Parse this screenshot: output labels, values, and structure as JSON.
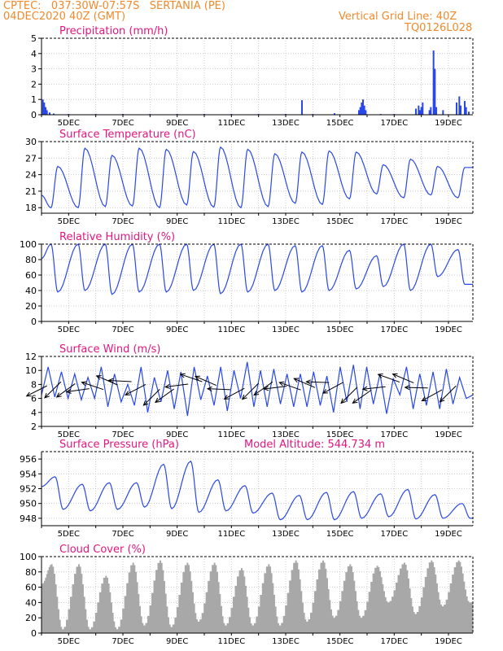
{
  "header": {
    "line1": "CPTEC:   037:30W-07:57S   SERTANIA (PE)",
    "line2": "04DEC2020 40Z (GMT)",
    "right1": "Vertical Grid Line: 40Z",
    "right2": "TQ0126L028"
  },
  "colors": {
    "header": "#f08a2c",
    "title": "#e0177f",
    "series": "#2a48e8",
    "cloud": "#a8a8a8",
    "wind_arrow": "#000000"
  },
  "x_axis_labels": [
    "5DEC",
    "7DEC",
    "9DEC",
    "11DEC",
    "13DEC",
    "15DEC",
    "17DEC",
    "19DEC"
  ],
  "chart_data": [
    {
      "id": "precip",
      "type": "bar",
      "title": "Precipitation (mm/h)",
      "ylim": [
        0,
        5
      ],
      "yticks": [
        0,
        1,
        2,
        3,
        4,
        5
      ],
      "x_unit": "days since 04DEC2020 00Z",
      "grid": true,
      "points": [
        [
          0.05,
          1.0
        ],
        [
          0.1,
          0.8
        ],
        [
          0.15,
          0.5
        ],
        [
          0.2,
          0.3
        ],
        [
          0.3,
          0.15
        ],
        [
          0.45,
          0.08
        ],
        [
          1.0,
          0.05
        ],
        [
          2.0,
          0.05
        ],
        [
          3.0,
          0.05
        ],
        [
          4.0,
          0.05
        ],
        [
          5.0,
          0.05
        ],
        [
          6.0,
          0.05
        ],
        [
          7.0,
          0.05
        ],
        [
          8.0,
          0.05
        ],
        [
          9.0,
          0.05
        ],
        [
          9.6,
          0.95
        ],
        [
          10.0,
          0.05
        ],
        [
          10.8,
          0.1
        ],
        [
          11.7,
          0.3
        ],
        [
          11.75,
          0.5
        ],
        [
          11.8,
          0.8
        ],
        [
          11.85,
          1.0
        ],
        [
          11.9,
          0.6
        ],
        [
          11.95,
          0.3
        ],
        [
          12.5,
          0.05
        ],
        [
          13.0,
          0.05
        ],
        [
          13.8,
          0.4
        ],
        [
          13.9,
          0.6
        ],
        [
          13.95,
          0.3
        ],
        [
          14.0,
          0.5
        ],
        [
          14.05,
          0.8
        ],
        [
          14.3,
          0.3
        ],
        [
          14.35,
          0.5
        ],
        [
          14.45,
          4.2
        ],
        [
          14.5,
          3.0
        ],
        [
          14.55,
          0.5
        ],
        [
          14.8,
          0.3
        ],
        [
          15.3,
          0.8
        ],
        [
          15.4,
          1.2
        ],
        [
          15.45,
          0.6
        ],
        [
          15.6,
          0.9
        ],
        [
          15.65,
          0.5
        ],
        [
          15.75,
          0.2
        ]
      ]
    },
    {
      "id": "temp",
      "type": "line",
      "title": "Surface Temperature (nC)",
      "ylim": [
        17,
        30
      ],
      "yticks": [
        18,
        21,
        24,
        27,
        30
      ],
      "x_unit": "days since 04DEC2020 00Z",
      "grid": true,
      "diurnal": {
        "start_day": 0,
        "end_day": 15.9,
        "peak_hour": 0.6,
        "min_hour": 0.35,
        "peaks": [
          25.5,
          28.8,
          27.5,
          28.8,
          28.6,
          28.2,
          29.0,
          28.6,
          27.8,
          28.1,
          28.3,
          28.1,
          25.8,
          26.8,
          25.5,
          25.3
        ],
        "mins": [
          18.0,
          18.0,
          18.2,
          18.3,
          18.0,
          18.5,
          18.1,
          18.0,
          18.2,
          18.8,
          18.6,
          19.6,
          20.5,
          19.8,
          20.3,
          19.8
        ]
      }
    },
    {
      "id": "rh",
      "type": "line",
      "title": "Relative Humidity (%)",
      "ylim": [
        0,
        100
      ],
      "yticks": [
        0,
        20,
        40,
        60,
        80,
        100
      ],
      "x_unit": "days since 04DEC2020 00Z",
      "grid": true,
      "diurnal": {
        "start_day": 0,
        "end_day": 15.9,
        "peak_hour": 0.35,
        "min_hour": 0.6,
        "peaks": [
          100,
          100,
          100,
          100,
          100,
          100,
          100,
          100,
          100,
          98,
          98,
          92,
          85,
          100,
          100,
          93
        ],
        "mins": [
          38,
          40,
          35,
          38,
          38,
          40,
          36,
          38,
          40,
          38,
          40,
          42,
          45,
          40,
          58,
          48
        ]
      }
    },
    {
      "id": "wind",
      "type": "line",
      "title": "Surface Wind (m/s)",
      "ylim": [
        2,
        12
      ],
      "yticks": [
        2,
        4,
        6,
        8,
        10,
        12
      ],
      "x_unit": "days since 04DEC2020 00Z",
      "grid": true,
      "values": [
        6.5,
        10.5,
        6.2,
        9.8,
        6.0,
        9.5,
        5.8,
        9.0,
        6.0,
        10.5,
        4.8,
        9.5,
        5.5,
        8.0,
        5.0,
        10.5,
        4.0,
        9.0,
        5.5,
        10.0,
        4.5,
        9.8,
        3.5,
        10.5,
        5.8,
        9.2,
        5.0,
        10.5,
        4.2,
        10.0,
        6.0,
        11.2,
        4.8,
        10.0,
        4.8,
        10.2,
        5.2,
        9.5,
        4.8,
        9.5,
        4.8,
        9.8,
        5.0,
        9.2,
        4.0,
        10.5,
        5.5,
        10.8,
        4.5,
        10.5,
        5.2,
        9.5,
        3.8,
        8.8,
        6.5,
        10.5,
        4.5,
        9.5,
        5.0,
        9.8,
        4.5,
        10.2,
        5.2,
        9.0,
        6.0,
        6.5
      ]
    },
    {
      "id": "pressure",
      "type": "line",
      "title": "Surface Pressure (hPa)",
      "annotation": "Model Altitude: 544.734 m",
      "ylim": [
        947,
        957
      ],
      "yticks": [
        948,
        950,
        952,
        954,
        956
      ],
      "x_unit": "days since 04DEC2020 00Z",
      "grid": true,
      "diurnal": {
        "start_day": 0,
        "end_day": 15.9,
        "peak_hour": 0.5,
        "min_hour": 0.8,
        "peaks": [
          953.6,
          952.6,
          952.8,
          952.8,
          955.3,
          955.7,
          953.2,
          952.4,
          951.4,
          951.1,
          951.5,
          951.6,
          951.3,
          951.9,
          951.2,
          950.0
        ],
        "mins": [
          949.2,
          949.0,
          949.2,
          949.5,
          949.3,
          948.8,
          949.0,
          948.7,
          947.8,
          947.8,
          947.8,
          948.0,
          948.2,
          947.9,
          948.0,
          948.0
        ]
      }
    },
    {
      "id": "cloud",
      "type": "area",
      "title": "Cloud Cover (%)",
      "ylim": [
        0,
        100
      ],
      "yticks": [
        0,
        20,
        40,
        60,
        80,
        100
      ],
      "x_unit": "days since 04DEC2020 00Z",
      "grid": true,
      "diurnal": {
        "start_day": 0,
        "end_day": 15.9,
        "peak_hour": 0.35,
        "min_hour": 0.75,
        "peaks": [
          90,
          90,
          75,
          92,
          95,
          92,
          92,
          85,
          90,
          95,
          95,
          90,
          88,
          92,
          95,
          95
        ],
        "mins": [
          5,
          5,
          5,
          10,
          8,
          15,
          10,
          10,
          10,
          15,
          20,
          20,
          40,
          25,
          35,
          40
        ]
      }
    }
  ]
}
